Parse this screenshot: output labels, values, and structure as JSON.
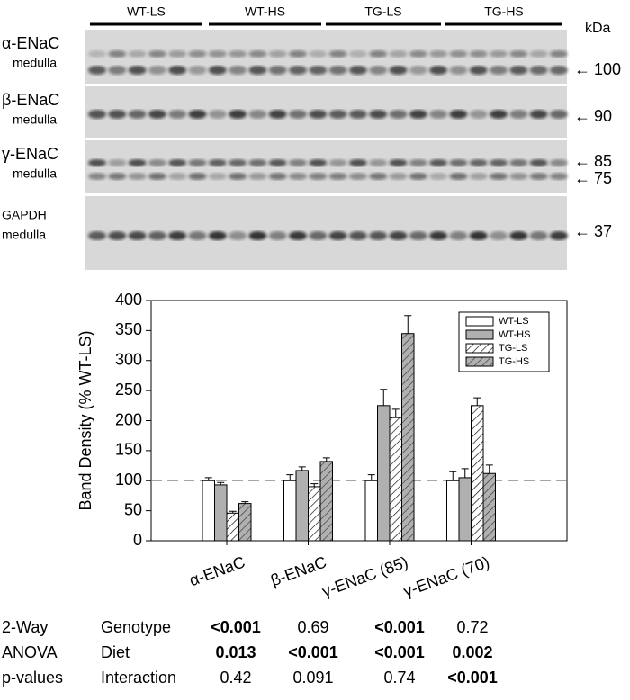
{
  "blot": {
    "groups": [
      "WT-LS",
      "WT-HS",
      "TG-LS",
      "TG-HS"
    ],
    "unit": "kDa",
    "panels": [
      {
        "label": "α-ENaC",
        "sublabel": "medulla",
        "markers": [
          "100"
        ]
      },
      {
        "label": "β-ENaC",
        "sublabel": "medulla",
        "markers": [
          "90"
        ]
      },
      {
        "label": "γ-ENaC",
        "sublabel": "medulla",
        "markers": [
          "85",
          "75"
        ]
      },
      {
        "label": "GAPDH",
        "sublabel": "medulla",
        "markers": [
          "37"
        ]
      }
    ]
  },
  "chart_data": {
    "type": "bar",
    "y_label": "Band Density (% WT-LS)",
    "categories": [
      "α-ENaC",
      "β-ENaC",
      "γ-ENaC (85)",
      "γ-ENaC (70)"
    ],
    "series": [
      {
        "name": "WT-LS",
        "color": "#ffffff",
        "hatch": false,
        "values": [
          100,
          100,
          100,
          100
        ],
        "errors": [
          5,
          10,
          10,
          15
        ]
      },
      {
        "name": "WT-HS",
        "color": "#b0b0b0",
        "hatch": false,
        "values": [
          93,
          117,
          225,
          105
        ],
        "errors": [
          4,
          6,
          27,
          15
        ]
      },
      {
        "name": "TG-LS",
        "color": "#ffffff",
        "hatch": true,
        "values": [
          46,
          90,
          205,
          225
        ],
        "errors": [
          3,
          5,
          14,
          13
        ]
      },
      {
        "name": "TG-HS",
        "color": "#b0b0b0",
        "hatch": true,
        "values": [
          62,
          132,
          345,
          112
        ],
        "errors": [
          3,
          6,
          30,
          14
        ]
      }
    ],
    "ylim": [
      0,
      400
    ],
    "yticks": [
      0,
      50,
      100,
      150,
      200,
      250,
      300,
      350,
      400
    ],
    "ref_line": 100,
    "legend": "top-right"
  },
  "table": {
    "rows": [
      [
        "2-Way",
        "Genotype",
        "<0.001",
        "0.69",
        "<0.001",
        "0.72"
      ],
      [
        "ANOVA",
        "Diet",
        "0.013",
        "<0.001",
        "<0.001",
        "0.002"
      ],
      [
        "p-values",
        "Interaction",
        "0.42",
        "0.091",
        "0.74",
        "<0.001"
      ]
    ],
    "bold": [
      [
        false,
        false,
        true,
        false,
        true,
        false
      ],
      [
        false,
        false,
        true,
        true,
        true,
        true
      ],
      [
        false,
        false,
        false,
        false,
        false,
        true
      ]
    ]
  }
}
